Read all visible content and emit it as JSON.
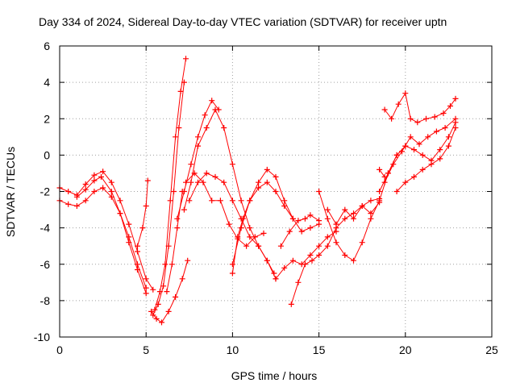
{
  "chart_data": {
    "type": "scatter",
    "title": "Day 334 of 2024, Sidereal Day-to-day VTEC variation (SDTVAR) for receiver uptn",
    "xlabel": "GPS time / hours",
    "ylabel": "SDTVAR / TECUs",
    "xlim": [
      0,
      25
    ],
    "ylim": [
      -10,
      6
    ],
    "xticks": [
      0,
      5,
      10,
      15,
      20,
      25
    ],
    "yticks": [
      -10,
      -8,
      -6,
      -4,
      -2,
      0,
      2,
      4,
      6
    ],
    "grid": true,
    "marker": "plus",
    "color": "#ff0000",
    "series": [
      {
        "x": [
          0.0,
          0.5,
          1.0,
          1.5,
          2.0,
          2.5,
          3.0,
          3.5,
          4.0,
          4.5,
          5.0
        ],
        "y": [
          -2.5,
          -2.7,
          -2.8,
          -2.5,
          -2.0,
          -1.8,
          -2.3,
          -3.2,
          -4.5,
          -6.0,
          -7.3
        ]
      },
      {
        "x": [
          0.0,
          0.5,
          1.0,
          1.5,
          2.0,
          2.5,
          3.0,
          3.5,
          4.0,
          4.5,
          5.0,
          5.4
        ],
        "y": [
          -1.8,
          -2.0,
          -2.2,
          -1.6,
          -1.1,
          -0.9,
          -1.5,
          -2.5,
          -3.8,
          -5.3,
          -6.8,
          -7.4
        ]
      },
      {
        "x": [
          1.0,
          1.5,
          2.0,
          2.4,
          3.0,
          3.5,
          4.0,
          4.5,
          5.0
        ],
        "y": [
          -2.3,
          -1.9,
          -1.4,
          -1.2,
          -2.0,
          -3.2,
          -4.8,
          -6.3,
          -7.6
        ]
      },
      {
        "x": [
          4.5,
          4.8,
          5.0,
          5.1
        ],
        "y": [
          -5.0,
          -4.0,
          -2.8,
          -1.4
        ]
      },
      {
        "x": [
          5.3,
          5.6,
          5.9,
          6.3,
          6.7,
          7.1,
          7.4
        ],
        "y": [
          -8.6,
          -9.0,
          -9.2,
          -8.6,
          -7.8,
          -6.8,
          -5.8
        ]
      },
      {
        "x": [
          5.4,
          5.7,
          6.0,
          6.3,
          6.6,
          6.9,
          7.2
        ],
        "y": [
          -8.8,
          -8.2,
          -7.2,
          -5.0,
          -2.0,
          1.5,
          4.0
        ]
      },
      {
        "x": [
          5.5,
          5.8,
          6.1,
          6.4,
          6.7,
          7.0,
          7.3
        ],
        "y": [
          -8.5,
          -7.5,
          -6.0,
          -2.5,
          1.0,
          3.5,
          5.3
        ]
      },
      {
        "x": [
          6.2,
          6.5,
          6.8,
          7.1
        ],
        "y": [
          -7.5,
          -6.0,
          -4.0,
          -2.0
        ]
      },
      {
        "x": [
          6.8,
          7.2,
          7.6,
          8.0,
          8.4,
          8.8,
          9.2
        ],
        "y": [
          -3.5,
          -2.0,
          -0.5,
          1.0,
          2.2,
          3.0,
          2.5
        ]
      },
      {
        "x": [
          7.2,
          7.6,
          8.0,
          8.5,
          9.0,
          9.5,
          10.0,
          10.5,
          11.0,
          11.5,
          12.0,
          12.4
        ],
        "y": [
          -3.0,
          -1.5,
          0.5,
          1.5,
          2.5,
          1.5,
          -0.5,
          -2.5,
          -4.0,
          -5.0,
          -5.8,
          -6.5
        ]
      },
      {
        "x": [
          7.5,
          8.0,
          8.5,
          9.0,
          9.5,
          10.0,
          10.5,
          11.0,
          11.5,
          12.0,
          12.5
        ],
        "y": [
          -2.5,
          -1.5,
          -1.0,
          -1.2,
          -1.5,
          -2.5,
          -3.5,
          -4.5,
          -5.0,
          -5.8,
          -6.8
        ]
      },
      {
        "x": [
          7.3,
          7.8,
          8.3,
          8.8,
          9.3,
          9.8,
          10.3,
          10.8,
          11.3,
          11.8
        ],
        "y": [
          -1.5,
          -1.0,
          -1.5,
          -2.5,
          -2.5,
          -3.8,
          -4.6,
          -5.0,
          -4.5,
          -4.3
        ]
      },
      {
        "x": [
          10.0,
          10.3,
          10.6,
          11.0,
          11.5,
          12.0,
          12.5,
          13.0,
          13.5
        ],
        "y": [
          -6.5,
          -4.5,
          -3.5,
          -2.5,
          -1.8,
          -1.5,
          -2.0,
          -2.8,
          -3.5
        ]
      },
      {
        "x": [
          10.0,
          10.5,
          11.0,
          11.5,
          12.0,
          12.5,
          13.0,
          13.5,
          14.0,
          14.5,
          15.0
        ],
        "y": [
          -6.0,
          -4.0,
          -2.5,
          -1.5,
          -0.8,
          -1.2,
          -2.5,
          -3.5,
          -4.2,
          -4.0,
          -3.8
        ]
      },
      {
        "x": [
          12.5,
          13.0,
          13.5,
          14.0,
          14.5,
          15.0,
          15.5,
          16.0
        ],
        "y": [
          -6.8,
          -6.2,
          -5.8,
          -6.0,
          -5.5,
          -5.0,
          -4.5,
          -4.2
        ]
      },
      {
        "x": [
          12.8,
          13.3,
          13.8,
          14.2,
          14.5,
          15.0
        ],
        "y": [
          -5.0,
          -4.2,
          -3.6,
          -3.5,
          -3.3,
          -3.6
        ]
      },
      {
        "x": [
          13.4,
          13.8,
          14.2,
          14.6,
          15.0,
          15.5,
          16.0,
          16.5,
          17.0,
          17.5,
          18.0,
          18.5
        ],
        "y": [
          -8.2,
          -7.0,
          -6.0,
          -5.8,
          -5.5,
          -5.0,
          -4.0,
          -3.5,
          -3.2,
          -2.8,
          -2.5,
          -2.4
        ]
      },
      {
        "x": [
          15.0,
          15.5,
          16.0,
          16.5,
          17.0,
          17.5,
          18.0,
          18.5,
          19.0,
          19.5,
          20.0
        ],
        "y": [
          -2.0,
          -3.5,
          -4.8,
          -5.5,
          -5.8,
          -4.8,
          -3.5,
          -2.5,
          -1.0,
          0.0,
          0.5
        ]
      },
      {
        "x": [
          15.5,
          16.0,
          16.5,
          17.0,
          17.5,
          18.0,
          18.5
        ],
        "y": [
          -3.0,
          -3.8,
          -3.0,
          -3.5,
          -2.8,
          -3.2,
          -2.6
        ]
      },
      {
        "x": [
          18.5,
          19.0,
          19.5,
          20.0,
          20.5,
          21.0,
          21.5,
          22.0,
          22.5,
          22.9
        ],
        "y": [
          -2.0,
          -1.0,
          0.0,
          0.5,
          0.3,
          0.0,
          -0.3,
          0.3,
          1.0,
          1.8
        ]
      },
      {
        "x": [
          18.8,
          19.3,
          19.8,
          20.3,
          20.8,
          21.3,
          21.8,
          22.3,
          22.9
        ],
        "y": [
          -1.5,
          -0.5,
          0.2,
          1.0,
          0.6,
          1.0,
          1.3,
          1.5,
          2.0
        ]
      },
      {
        "x": [
          19.5,
          20.0,
          20.5,
          21.0,
          21.5,
          22.0,
          22.5,
          22.9
        ],
        "y": [
          -2.0,
          -1.5,
          -1.2,
          -0.8,
          -0.5,
          -0.2,
          0.5,
          1.5
        ]
      },
      {
        "x": [
          18.8,
          19.2,
          19.6,
          20.0,
          20.3,
          20.7,
          21.2,
          21.7,
          22.2,
          22.6,
          22.9
        ],
        "y": [
          2.5,
          2.0,
          2.8,
          3.4,
          2.0,
          1.8,
          2.0,
          2.1,
          2.3,
          2.7,
          3.1
        ]
      },
      {
        "x": [
          18.5,
          18.8
        ],
        "y": [
          -0.8,
          -1.2
        ]
      }
    ]
  }
}
